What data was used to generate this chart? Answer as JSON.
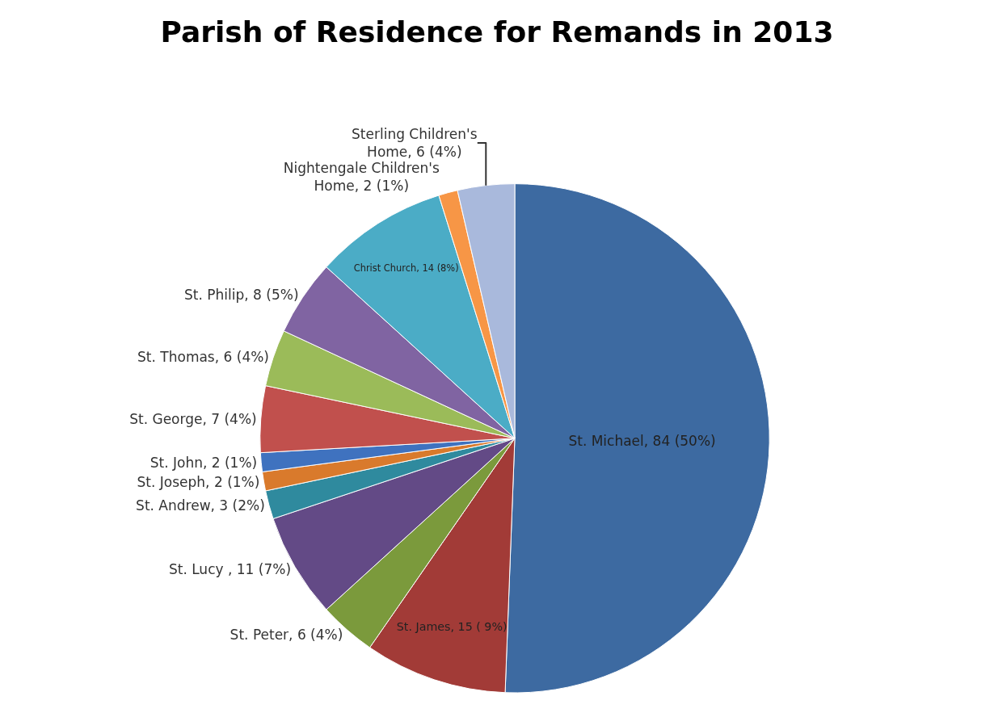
{
  "chart_data": {
    "type": "pie",
    "title": "Parish of Residence for Remands in 2013",
    "categories": [
      "St. Michael",
      "St. James",
      "St. Peter",
      "St. Lucy ",
      "St. Andrew",
      "St. Joseph",
      "St. John",
      "St. George",
      "St. Thomas",
      "St. Philip",
      "Christ Church",
      "Nightengale Children's Home",
      "Sterling Children's Home"
    ],
    "values": [
      84,
      15,
      6,
      11,
      3,
      2,
      2,
      7,
      6,
      8,
      14,
      2,
      6
    ],
    "value_labels": [
      "84 (50%)",
      "15 ( 9%)",
      "6 (4%)",
      "11 (7%)",
      "3 (2%)",
      "2 (1%)",
      "2 (1%)",
      "7 (4%)",
      "6 (4%)",
      "8 (5%)",
      "14 (8%)",
      "2 (1%)",
      "6 (4%)"
    ],
    "colors": [
      "#3d6aa1",
      "#a23b37",
      "#7b9a3c",
      "#634a86",
      "#2f8a9e",
      "#d97a2c",
      "#3f72bf",
      "#c1504d",
      "#9bbb59",
      "#8064a2",
      "#4bacc6",
      "#f79646",
      "#a9b9dc"
    ],
    "legend": false
  }
}
